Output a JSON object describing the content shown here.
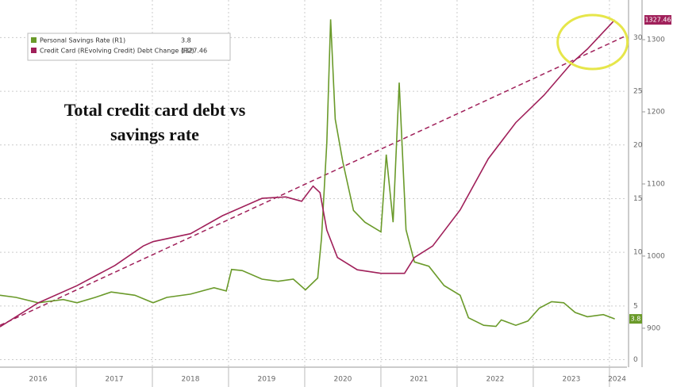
{
  "chart_data": {
    "type": "line",
    "annotation": "Total credit card debt vs savings rate",
    "xlim": [
      2016,
      2024.23
    ],
    "xticks": [
      {
        "value": 2016.5,
        "label": "2016"
      },
      {
        "value": 2017.5,
        "label": "2017"
      },
      {
        "value": 2018.5,
        "label": "2018"
      },
      {
        "value": 2019.5,
        "label": "2019"
      },
      {
        "value": 2020.5,
        "label": "2020"
      },
      {
        "value": 2021.5,
        "label": "2021"
      },
      {
        "value": 2022.5,
        "label": "2022"
      },
      {
        "value": 2023.5,
        "label": "2023"
      },
      {
        "value": 2024.1,
        "label": "2024"
      }
    ],
    "xgrid": [
      2017,
      2018,
      2019,
      2020,
      2021,
      2022,
      2023,
      2024
    ],
    "ylim": [
      -0.7,
      33.5
    ],
    "yticks": [
      0,
      5,
      10,
      15,
      20,
      25,
      30
    ],
    "y2lim": [
      846,
      1355
    ],
    "y2ticks": [
      900,
      1000,
      1100,
      1200,
      1300
    ],
    "grid": true,
    "series": [
      {
        "name": "Personal Savings Rate (R1)",
        "color": "#6a9a2a",
        "axis": "y",
        "x": [
          2016.0,
          2016.21,
          2016.5,
          2016.83,
          2017.01,
          2017.25,
          2017.46,
          2017.77,
          2018.01,
          2018.19,
          2018.5,
          2018.81,
          2018.97,
          2019.04,
          2019.18,
          2019.44,
          2019.65,
          2019.85,
          2020.01,
          2020.17,
          2020.22,
          2020.29,
          2020.34,
          2020.4,
          2020.5,
          2020.64,
          2020.79,
          2021.0,
          2021.07,
          2021.16,
          2021.24,
          2021.33,
          2021.44,
          2021.63,
          2021.83,
          2022.04,
          2022.15,
          2022.35,
          2022.51,
          2022.58,
          2022.77,
          2022.93,
          2023.08,
          2023.24,
          2023.4,
          2023.55,
          2023.71,
          2023.92,
          2024.07
        ],
        "values": [
          6.0,
          5.8,
          5.3,
          5.6,
          5.3,
          5.8,
          6.3,
          6.0,
          5.3,
          5.8,
          6.1,
          6.7,
          6.4,
          8.4,
          8.3,
          7.5,
          7.3,
          7.5,
          6.5,
          7.6,
          11.3,
          20.2,
          31.7,
          22.4,
          18.4,
          13.9,
          12.8,
          11.9,
          19.1,
          12.8,
          25.8,
          12.1,
          9.1,
          8.7,
          6.9,
          6.0,
          3.9,
          3.2,
          3.1,
          3.7,
          3.2,
          3.6,
          4.8,
          5.4,
          5.3,
          4.4,
          4.0,
          4.2,
          3.8
        ]
      },
      {
        "name": "Credit Card (REvolving Credit) Debt Change (R2)",
        "color": "#a0205a",
        "axis": "y2",
        "x": [
          2016.0,
          2016.5,
          2017.01,
          2017.51,
          2017.88,
          2018.01,
          2018.5,
          2018.92,
          2019.44,
          2019.75,
          2019.96,
          2020.11,
          2020.2,
          2020.29,
          2020.43,
          2020.69,
          2021.0,
          2021.31,
          2021.44,
          2021.68,
          2022.04,
          2022.41,
          2022.77,
          2023.14,
          2023.5,
          2023.71,
          2024.07
        ],
        "values": [
          902,
          935,
          959,
          987,
          1014,
          1020,
          1031,
          1056,
          1080,
          1082,
          1076,
          1097,
          1088,
          1036,
          998,
          981,
          976,
          976,
          998,
          1014,
          1064,
          1135,
          1185,
          1223,
          1267,
          1287,
          1327.46
        ]
      }
    ],
    "trendline": {
      "axis": "y2",
      "color": "#a0205a",
      "x": [
        2016,
        2024.23
      ],
      "values": [
        904,
        1306
      ]
    },
    "highlight_color": "#e6e64a"
  }
}
